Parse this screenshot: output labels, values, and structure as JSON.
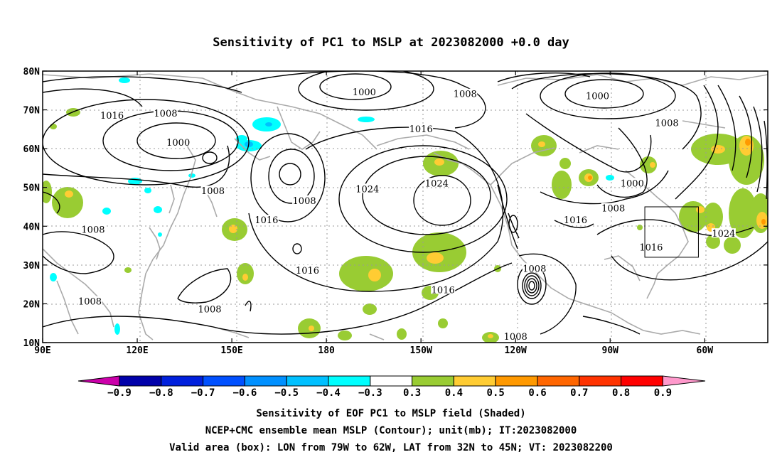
{
  "title": "Sensitivity of PC1 to MSLP at 2023082000 +0.0 day",
  "lat_labels": [
    "80N",
    "70N",
    "60N",
    "50N",
    "40N",
    "30N",
    "20N",
    "10N"
  ],
  "lon_labels": [
    "90E",
    "120E",
    "150E",
    "180",
    "150W",
    "120W",
    "90W",
    "60W"
  ],
  "contour_labels": [
    {
      "text": "1016",
      "lon": 112,
      "lat": 68.5
    },
    {
      "text": "1008",
      "lon": 129,
      "lat": 69
    },
    {
      "text": "1000",
      "lon": 133,
      "lat": 61.5
    },
    {
      "text": "1008",
      "lon": 144,
      "lat": 49
    },
    {
      "text": "1008",
      "lon": 106,
      "lat": 39
    },
    {
      "text": "1008",
      "lon": 105,
      "lat": 20.5
    },
    {
      "text": "1008",
      "lon": 143,
      "lat": 18.5
    },
    {
      "text": "1016",
      "lon": 161,
      "lat": 41.5
    },
    {
      "text": "1008",
      "lon": 173,
      "lat": 46.5
    },
    {
      "text": "1016",
      "lon": 174,
      "lat": 28.5
    },
    {
      "text": "1000",
      "lon": -168,
      "lat": 74.5
    },
    {
      "text": "1016",
      "lon": -150,
      "lat": 65
    },
    {
      "text": "1024",
      "lon": -167,
      "lat": 49.5
    },
    {
      "text": "1024",
      "lon": -145,
      "lat": 51
    },
    {
      "text": "1008",
      "lon": -136,
      "lat": 74
    },
    {
      "text": "1016",
      "lon": -143,
      "lat": 23.5
    },
    {
      "text": "1008",
      "lon": -114,
      "lat": 29
    },
    {
      "text": "1008",
      "lon": -120,
      "lat": 11.5
    },
    {
      "text": "1000",
      "lon": -94,
      "lat": 73.5
    },
    {
      "text": "1008",
      "lon": -72,
      "lat": 66.5
    },
    {
      "text": "1000",
      "lon": -83,
      "lat": 51
    },
    {
      "text": "1008",
      "lon": -89,
      "lat": 44.5
    },
    {
      "text": "1016",
      "lon": -101,
      "lat": 41.5
    },
    {
      "text": "1016",
      "lon": -77,
      "lat": 34.5
    },
    {
      "text": "1024",
      "lon": -54,
      "lat": 38
    }
  ],
  "colorbar_labels": [
    "−0.9",
    "−0.8",
    "−0.7",
    "−0.6",
    "−0.5",
    "−0.4",
    "−0.3",
    "0.3",
    "0.4",
    "0.5",
    "0.6",
    "0.7",
    "0.8",
    "0.9"
  ],
  "colorbar_colors": {
    "below_min": "#cc00aa",
    "bins": [
      "#0000aa",
      "#0020dd",
      "#0050ff",
      "#0090ff",
      "#00c0ff",
      "#00ffff",
      "#ffffff",
      "#99cc33",
      "#ffcc33",
      "#ff9900",
      "#ff6600",
      "#ff3300",
      "#ff0000"
    ],
    "above_max": "#ff99cc"
  },
  "valid_box": {
    "lon_min": -79,
    "lon_max": -62,
    "lat_min": 32,
    "lat_max": 45
  },
  "captions": [
    "Sensitivity of EOF PC1 to MSLP field (Shaded)",
    "NCEP+CMC ensemble mean MSLP (Contour); unit(mb); IT:2023082000",
    "Valid area (box): LON from 79W to 62W, LAT from 32N to 45N; VT: 2023082200"
  ]
}
